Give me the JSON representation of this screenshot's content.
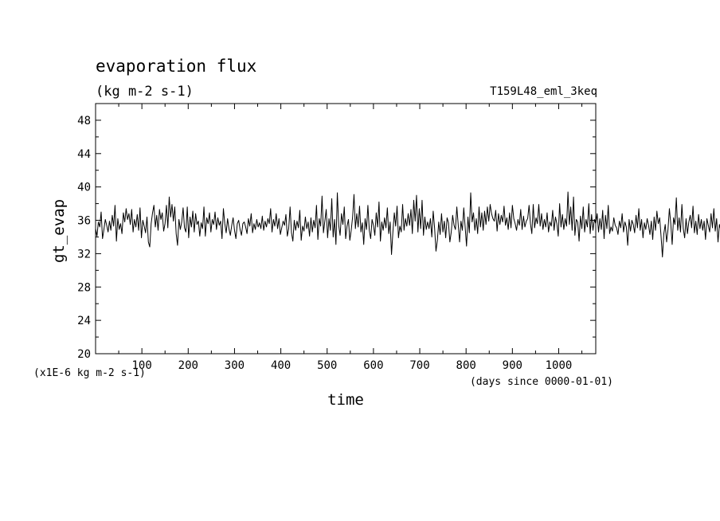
{
  "chart_data": {
    "type": "line",
    "title": "evaporation flux",
    "subtitle": "(kg m-2 s-1)",
    "run_label": "T159L48_eml_3keq",
    "xlabel": "time",
    "xunits": "(days since 0000-01-01)",
    "ylabel": "gt_evap",
    "yunits": "(x1E-6 kg m-2 s-1)",
    "xlim": [
      0,
      1080
    ],
    "ylim": [
      20,
      50
    ],
    "xticks": [
      "100",
      "200",
      "300",
      "400",
      "500",
      "600",
      "700",
      "800",
      "900",
      "1000"
    ],
    "yticks": [
      "20",
      "24",
      "28",
      "32",
      "36",
      "40",
      "44",
      "48"
    ],
    "grid": false,
    "legend": "none",
    "line_color": "#000000",
    "series": [
      {
        "x_start": 0,
        "x_step": 3,
        "values": [
          35.0,
          34.1,
          35.8,
          35.2,
          37.0,
          33.8,
          34.9,
          36.1,
          35.4,
          34.6,
          35.9,
          34.8,
          36.6,
          35.3,
          37.8,
          33.5,
          36.2,
          34.9,
          35.6,
          34.4,
          36.9,
          35.8,
          37.4,
          36.1,
          36.8,
          35.5,
          37.3,
          34.6,
          36.1,
          35.2,
          36.7,
          34.8,
          37.5,
          33.9,
          36.0,
          35.3,
          34.5,
          36.4,
          33.4,
          32.8,
          35.6,
          36.9,
          37.8,
          35.2,
          36.6,
          34.8,
          37.3,
          36.1,
          36.9,
          34.7,
          35.6,
          37.8,
          35.1,
          38.8,
          36.4,
          37.9,
          35.9,
          37.6,
          34.4,
          33.0,
          36.1,
          34.9,
          35.8,
          37.5,
          35.1,
          34.6,
          37.6,
          33.9,
          36.4,
          35.2,
          37.1,
          34.6,
          36.8,
          35.5,
          35.9,
          34.1,
          35.7,
          35.0,
          37.6,
          34.1,
          36.3,
          35.6,
          36.9,
          34.6,
          36.1,
          35.5,
          37.0,
          34.9,
          36.3,
          35.4,
          35.9,
          33.8,
          37.4,
          35.6,
          34.5,
          36.2,
          35.0,
          34.2,
          35.4,
          36.3,
          34.8,
          33.8,
          35.6,
          36.0,
          34.9,
          34.2,
          35.6,
          35.8,
          35.2,
          34.4,
          36.2,
          35.3,
          36.8,
          34.5,
          35.6,
          34.9,
          36.1,
          35.2,
          35.7,
          35.0,
          36.5,
          34.8,
          35.9,
          35.2,
          36.2,
          35.6,
          37.4,
          34.6,
          36.1,
          35.3,
          36.8,
          35.0,
          36.2,
          34.3,
          35.1,
          35.9,
          35.4,
          36.7,
          34.1,
          35.0,
          37.6,
          34.5,
          33.5,
          36.0,
          34.8,
          35.9,
          35.1,
          37.2,
          33.6,
          35.3,
          34.7,
          36.4,
          35.0,
          35.8,
          34.1,
          36.3,
          34.6,
          36.0,
          35.1,
          37.8,
          33.7,
          36.2,
          35.3,
          38.9,
          34.5,
          35.9,
          37.3,
          33.9,
          36.2,
          34.8,
          38.6,
          34.0,
          36.1,
          33.1,
          39.3,
          35.4,
          34.2,
          36.8,
          35.5,
          37.6,
          33.8,
          35.3,
          36.1,
          33.6,
          34.8,
          36.4,
          39.1,
          35.0,
          36.8,
          35.2,
          37.7,
          34.6,
          35.7,
          33.1,
          36.2,
          34.9,
          37.8,
          34.8,
          33.8,
          36.1,
          35.4,
          34.2,
          36.9,
          35.2,
          38.2,
          33.5,
          35.8,
          34.8,
          36.3,
          35.1,
          37.5,
          34.4,
          35.8,
          31.9,
          34.6,
          36.9,
          35.3,
          37.7,
          33.9,
          35.3,
          34.6,
          37.9,
          34.8,
          36.2,
          35.3,
          36.8,
          35.4,
          37.3,
          34.4,
          38.4,
          35.9,
          39.0,
          34.6,
          37.4,
          35.0,
          38.4,
          34.2,
          36.4,
          34.9,
          35.8,
          35.0,
          36.2,
          34.0,
          37.1,
          35.1,
          32.3,
          33.6,
          35.8,
          34.3,
          36.8,
          34.6,
          35.9,
          33.9,
          36.3,
          35.7,
          33.4,
          34.6,
          36.6,
          35.4,
          34.9,
          37.6,
          35.5,
          33.4,
          35.9,
          34.8,
          37.5,
          35.2,
          32.9,
          36.4,
          34.5,
          39.3,
          35.8,
          36.9,
          34.8,
          36.2,
          34.4,
          37.6,
          35.2,
          36.9,
          34.8,
          37.1,
          35.5,
          37.6,
          35.9,
          37.9,
          36.8,
          36.2,
          35.9,
          37.2,
          34.7,
          36.8,
          35.5,
          36.6,
          35.8,
          37.7,
          35.4,
          36.3,
          34.9,
          36.9,
          35.1,
          37.8,
          36.2,
          35.6,
          34.8,
          36.1,
          35.4,
          37.3,
          34.9,
          36.5,
          35.2,
          35.9,
          36.2,
          37.8,
          35.6,
          34.4,
          37.9,
          35.1,
          36.3,
          35.6,
          37.9,
          35.3,
          36.8,
          34.9,
          36.1,
          35.2,
          36.9,
          34.6,
          35.8,
          35.3,
          37.2,
          34.8,
          36.4,
          35.6,
          34.1,
          38.0,
          35.2,
          36.7,
          34.9,
          36.2,
          35.3,
          39.4,
          35.5,
          37.6,
          34.8,
          38.8,
          34.2,
          36.1,
          35.8,
          33.5,
          36.5,
          35.0,
          37.6,
          34.6,
          36.1,
          35.2,
          38.0,
          34.4,
          36.7,
          34.8,
          36.1,
          35.6,
          36.8,
          34.6,
          36.2,
          34.9,
          37.2,
          33.8,
          36.6,
          35.0,
          37.8,
          34.4,
          35.2,
          34.7,
          36.3,
          35.4,
          35.1,
          34.3,
          35.9,
          35.1,
          36.8,
          34.6,
          35.8,
          35.2,
          33.0,
          36.1,
          34.7,
          36.0,
          35.5,
          34.5,
          36.6,
          35.1,
          37.4,
          34.8,
          36.1,
          33.9,
          35.7,
          34.9,
          36.2,
          35.4,
          34.3,
          35.9,
          33.7,
          36.4,
          34.8,
          37.1,
          35.6,
          36.3,
          34.1,
          31.6,
          34.4,
          35.5,
          33.4,
          34.9,
          37.4,
          35.6,
          33.1,
          36.3,
          35.5,
          38.7,
          34.8,
          36.3,
          34.6,
          37.9,
          35.0,
          33.9,
          36.2,
          34.4,
          35.8,
          36.6,
          35.1,
          37.7,
          34.5,
          35.9,
          34.3,
          36.7,
          35.0,
          36.1,
          34.8,
          35.9,
          33.7,
          36.2,
          35.4,
          34.6,
          36.8,
          35.1,
          37.4,
          34.7,
          36.2,
          33.4,
          35.5,
          34.8,
          37.7,
          35.0,
          32.8,
          35.8,
          34.2,
          37.6,
          35.0,
          36.9,
          33.4
        ]
      }
    ]
  }
}
